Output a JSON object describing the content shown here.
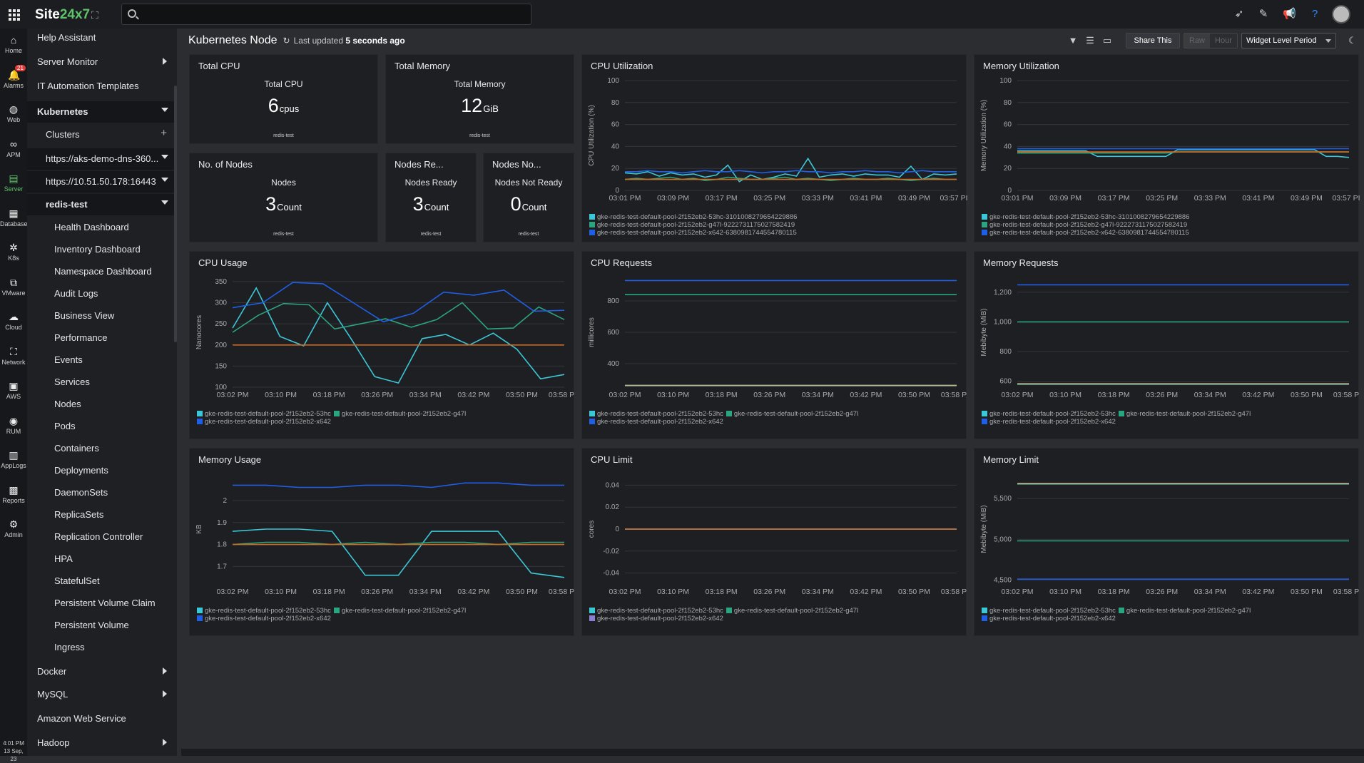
{
  "app": {
    "logo_main": "Site",
    "logo_accent": "24x7",
    "search_value": ""
  },
  "rail": [
    {
      "label": "Home",
      "icon": "home-icon",
      "glyph": "⌂"
    },
    {
      "label": "Alarms",
      "icon": "bell-icon",
      "glyph": "🔔",
      "badge": "21"
    },
    {
      "label": "Web",
      "icon": "globe-icon",
      "glyph": "◍"
    },
    {
      "label": "APM",
      "icon": "binoculars-icon",
      "glyph": "∞"
    },
    {
      "label": "Server",
      "icon": "server-icon",
      "glyph": "▤",
      "active": true
    },
    {
      "label": "Database",
      "icon": "database-icon",
      "glyph": "▦"
    },
    {
      "label": "K8s",
      "icon": "kubernetes-icon",
      "glyph": "✲"
    },
    {
      "label": "VMware",
      "icon": "vmware-icon",
      "glyph": "⧉"
    },
    {
      "label": "Cloud",
      "icon": "cloud-icon",
      "glyph": "☁"
    },
    {
      "label": "Network",
      "icon": "network-icon",
      "glyph": "⛶"
    },
    {
      "label": "AWS",
      "icon": "aws-icon",
      "glyph": "▣"
    },
    {
      "label": "RUM",
      "icon": "rum-icon",
      "glyph": "◉"
    },
    {
      "label": "AppLogs",
      "icon": "applogs-icon",
      "glyph": "▥"
    },
    {
      "label": "Reports",
      "icon": "reports-icon",
      "glyph": "▩"
    },
    {
      "label": "Admin",
      "icon": "gear-icon",
      "glyph": "⚙"
    }
  ],
  "clock": {
    "time": "4:01 PM",
    "date": "13 Sep, 23"
  },
  "sidebar": [
    {
      "label": "Help Assistant",
      "indent": 0,
      "bold": false
    },
    {
      "label": "Server Monitor",
      "indent": 0,
      "caret": "right"
    },
    {
      "label": "IT Automation Templates",
      "indent": 0
    },
    {
      "label": "Kubernetes",
      "indent": 0,
      "bold": true,
      "caret": "down",
      "dark": true
    },
    {
      "label": "Clusters",
      "indent": 1,
      "plus": true
    },
    {
      "label": "https://aks-demo-dns-360...",
      "indent": 1,
      "caret": "down",
      "dark": true
    },
    {
      "label": "https://10.51.50.178:16443",
      "indent": 1,
      "caret": "down",
      "dark": true
    },
    {
      "label": "redis-test",
      "indent": 1,
      "bold": true,
      "caret": "down",
      "dark": true
    },
    {
      "label": "Health Dashboard",
      "indent": 2
    },
    {
      "label": "Inventory Dashboard",
      "indent": 2
    },
    {
      "label": "Namespace Dashboard",
      "indent": 2
    },
    {
      "label": "Audit Logs",
      "indent": 2
    },
    {
      "label": "Business View",
      "indent": 2
    },
    {
      "label": "Performance",
      "indent": 2
    },
    {
      "label": "Events",
      "indent": 2
    },
    {
      "label": "Services",
      "indent": 2
    },
    {
      "label": "Nodes",
      "indent": 2
    },
    {
      "label": "Pods",
      "indent": 2
    },
    {
      "label": "Containers",
      "indent": 2
    },
    {
      "label": "Deployments",
      "indent": 2
    },
    {
      "label": "DaemonSets",
      "indent": 2
    },
    {
      "label": "ReplicaSets",
      "indent": 2
    },
    {
      "label": "Replication Controller",
      "indent": 2
    },
    {
      "label": "HPA",
      "indent": 2
    },
    {
      "label": "StatefulSet",
      "indent": 2
    },
    {
      "label": "Persistent Volume Claim",
      "indent": 2
    },
    {
      "label": "Persistent Volume",
      "indent": 2
    },
    {
      "label": "Ingress",
      "indent": 2
    },
    {
      "label": "Docker",
      "indent": 0,
      "caret": "right"
    },
    {
      "label": "MySQL",
      "indent": 0,
      "caret": "right"
    },
    {
      "label": "Amazon Web Service",
      "indent": 0
    },
    {
      "label": "Hadoop",
      "indent": 0,
      "caret": "right"
    }
  ],
  "header": {
    "title": "Kubernetes Node",
    "last_updated_prefix": "Last updated",
    "last_updated_value": "5 seconds ago",
    "share": "Share This",
    "raw": "Raw",
    "hour": "Hour",
    "period": "Widget Level Period"
  },
  "kpis": {
    "total_cpu": {
      "title": "Total CPU",
      "label": "Total CPU",
      "value": "6",
      "unit": "cpus",
      "cluster": "redis-test"
    },
    "total_memory": {
      "title": "Total Memory",
      "label": "Total Memory",
      "value": "12",
      "unit": "GiB",
      "cluster": "redis-test"
    },
    "nodes": {
      "title": "No. of Nodes",
      "label": "Nodes",
      "value": "3",
      "unit": "Count",
      "cluster": "redis-test"
    },
    "nodes_ready": {
      "title": "Nodes Re...",
      "label": "Nodes Ready",
      "value": "3",
      "unit": "Count",
      "cluster": "redis-test"
    },
    "nodes_not_ready": {
      "title": "Nodes No...",
      "label": "Nodes Not Ready",
      "value": "0",
      "unit": "Count",
      "cluster": "redis-test"
    }
  },
  "colors": {
    "cyan": "#3cc7d6",
    "green": "#2aa57f",
    "blue": "#1f5fe6",
    "orange": "#d2691e",
    "tan": "#c9b27c",
    "grid": "#34363b",
    "text": "#aaaaaa"
  },
  "chart_data": [
    {
      "id": "cpu_util",
      "type": "line",
      "title": "CPU Utilization",
      "ylabel": "CPU Utilization (%)",
      "yticks": [
        "0",
        "20",
        "40",
        "60",
        "80",
        "100"
      ],
      "ylim": [
        0,
        100
      ],
      "xticks": [
        "03:01 PM",
        "03:09 PM",
        "03:17 PM",
        "03:25 PM",
        "03:33 PM",
        "03:41 PM",
        "03:49 PM",
        "03:57 PI"
      ],
      "series": [
        {
          "name": "gke-redis-test-default-pool-2f152eb2-53hc-3101008279654229886",
          "color": "#3cc7d6",
          "values": [
            16,
            15,
            17,
            13,
            16,
            14,
            15,
            12,
            14,
            23,
            8,
            14,
            10,
            12,
            15,
            13,
            29,
            12,
            14,
            15,
            13,
            15,
            14,
            14,
            12,
            22,
            10,
            15,
            14,
            15
          ]
        },
        {
          "name": "gke-redis-test-default-pool-2f152eb2-g47l-9222731175027582419",
          "color": "#2aa57f",
          "values": [
            10,
            11,
            10,
            11,
            12,
            10,
            11,
            9,
            10,
            12,
            11,
            10,
            10,
            11,
            12,
            10,
            11,
            10,
            9,
            10,
            11,
            10,
            10,
            11,
            10,
            9,
            10,
            11,
            10,
            10
          ]
        },
        {
          "name": "gke-redis-test-default-pool-2f152eb2-x642-6380981744554780115",
          "color": "#1f5fe6",
          "values": [
            17,
            17,
            18,
            17,
            17,
            16,
            17,
            18,
            17,
            17,
            18,
            17,
            16,
            17,
            17,
            18,
            17,
            17,
            16,
            17,
            17,
            18,
            17,
            17,
            16,
            17,
            18,
            17,
            17,
            17
          ]
        },
        {
          "name": "threshold",
          "color": "#d2691e",
          "values": [
            10,
            10,
            10,
            10,
            10,
            10,
            10,
            10,
            10,
            10,
            10,
            10,
            10,
            10,
            10,
            10,
            10,
            10,
            10,
            10,
            10,
            10,
            10,
            10,
            10,
            10,
            10,
            10,
            10,
            10
          ],
          "legend": false
        }
      ]
    },
    {
      "id": "mem_util",
      "type": "line",
      "title": "Memory Utilization",
      "ylabel": "Memory Utilization (%)",
      "yticks": [
        "0",
        "20",
        "40",
        "60",
        "80",
        "100"
      ],
      "ylim": [
        0,
        100
      ],
      "xticks": [
        "03:01 PM",
        "03:09 PM",
        "03:17 PM",
        "03:25 PM",
        "03:33 PM",
        "03:41 PM",
        "03:49 PM",
        "03:57 PI"
      ],
      "series": [
        {
          "name": "gke-redis-test-default-pool-2f152eb2-53hc-3101008279654229886",
          "color": "#3cc7d6",
          "values": [
            36,
            36,
            36,
            36,
            36,
            36,
            36,
            31,
            31,
            31,
            31,
            31,
            31,
            31,
            37,
            37,
            37,
            37,
            37,
            37,
            37,
            37,
            37,
            37,
            37,
            37,
            37,
            31,
            31,
            30
          ]
        },
        {
          "name": "gke-redis-test-default-pool-2f152eb2-g47l-9222731175027582419",
          "color": "#2aa57f",
          "values": [
            34,
            34,
            34,
            34,
            34,
            34,
            34,
            34,
            34,
            34,
            34,
            34,
            34,
            34,
            35,
            35,
            35,
            35,
            35,
            35,
            35,
            35,
            35,
            35,
            35,
            35,
            35,
            35,
            35,
            35
          ]
        },
        {
          "name": "gke-redis-test-default-pool-2f152eb2-x642-6380981744554780115",
          "color": "#1f5fe6",
          "values": [
            38,
            38,
            38,
            38,
            38,
            38,
            38,
            38,
            38,
            38,
            38,
            38,
            38,
            38,
            38,
            38,
            38,
            38,
            38,
            38,
            38,
            38,
            38,
            38,
            38,
            38,
            38,
            38,
            38,
            38
          ]
        },
        {
          "name": "threshold",
          "color": "#d2691e",
          "values": [
            35,
            35,
            35,
            35,
            35,
            35,
            35,
            35,
            35,
            35,
            35,
            35,
            35,
            35,
            35,
            35,
            35,
            35,
            35,
            35,
            35,
            35,
            35,
            35,
            35,
            35,
            35,
            35,
            35,
            35
          ],
          "legend": false
        }
      ]
    },
    {
      "id": "cpu_usage",
      "type": "line",
      "title": "CPU Usage",
      "ylabel": "Nanocores",
      "yticks": [
        "100",
        "150",
        "200",
        "250",
        "300",
        "350"
      ],
      "ylim": [
        100,
        360
      ],
      "xticks": [
        "03:02 PM",
        "03:10 PM",
        "03:18 PM",
        "03:26 PM",
        "03:34 PM",
        "03:42 PM",
        "03:50 PM",
        "03:58 P"
      ],
      "series": [
        {
          "name": "gke-redis-test-default-pool-2f152eb2-53hc",
          "color": "#3cc7d6",
          "values": [
            240,
            335,
            220,
            198,
            300,
            215,
            125,
            110,
            215,
            225,
            200,
            228,
            190,
            120,
            130
          ]
        },
        {
          "name": "gke-redis-test-default-pool-2f152eb2-g47l",
          "color": "#2aa57f",
          "values": [
            230,
            270,
            298,
            295,
            238,
            250,
            262,
            242,
            260,
            300,
            238,
            240,
            290,
            260
          ]
        },
        {
          "name": "gke-redis-test-default-pool-2f152eb2-x642",
          "color": "#1f5fe6",
          "values": [
            288,
            300,
            348,
            345,
            300,
            255,
            275,
            325,
            318,
            330,
            280,
            282
          ]
        },
        {
          "name": "threshold",
          "color": "#d2691e",
          "values": [
            200,
            200,
            200,
            200,
            200,
            200,
            200,
            200,
            200,
            200,
            200,
            200
          ],
          "legend": false
        }
      ]
    },
    {
      "id": "cpu_requests",
      "type": "line",
      "title": "CPU Requests",
      "ylabel": "millicores",
      "yticks": [
        "400",
        "600",
        "800"
      ],
      "ylim": [
        250,
        950
      ],
      "xticks": [
        "03:02 PM",
        "03:10 PM",
        "03:18 PM",
        "03:26 PM",
        "03:34 PM",
        "03:42 PM",
        "03:50 PM",
        "03:58 P"
      ],
      "series": [
        {
          "name": "gke-redis-test-default-pool-2f152eb2-53hc",
          "color": "#3cc7d6",
          "values": [
            260,
            260
          ]
        },
        {
          "name": "gke-redis-test-default-pool-2f152eb2-g47l",
          "color": "#2aa57f",
          "values": [
            840,
            840
          ]
        },
        {
          "name": "gke-redis-test-default-pool-2f152eb2-x642",
          "color": "#1f5fe6",
          "values": [
            930,
            930
          ]
        },
        {
          "name": "threshold",
          "color": "#c9b27c",
          "values": [
            262,
            262
          ],
          "legend": false
        }
      ]
    },
    {
      "id": "mem_requests",
      "type": "line",
      "title": "Memory Requests",
      "ylabel": "Mebibyte (MiB)",
      "yticks": [
        "600",
        "800",
        "1,000",
        "1,200"
      ],
      "ylim": [
        560,
        1300
      ],
      "xticks": [
        "03:02 PM",
        "03:10 PM",
        "03:18 PM",
        "03:26 PM",
        "03:34 PM",
        "03:42 PM",
        "03:50 PM",
        "03:58 P"
      ],
      "series": [
        {
          "name": "gke-redis-test-default-pool-2f152eb2-53hc",
          "color": "#3cc7d6",
          "values": [
            580,
            580
          ]
        },
        {
          "name": "gke-redis-test-default-pool-2f152eb2-g47l",
          "color": "#2aa57f",
          "values": [
            1000,
            1000
          ]
        },
        {
          "name": "gke-redis-test-default-pool-2f152eb2-x642",
          "color": "#1f5fe6",
          "values": [
            1250,
            1250
          ]
        },
        {
          "name": "threshold",
          "color": "#c9b27c",
          "values": [
            583,
            583
          ],
          "legend": false
        }
      ]
    },
    {
      "id": "mem_usage",
      "type": "line",
      "title": "Memory Usage",
      "ylabel": "KB",
      "yticks": [
        "1.7",
        "1.8",
        "1.9",
        "2"
      ],
      "ylim": [
        1.62,
        2.12
      ],
      "xticks": [
        "03:02 PM",
        "03:10 PM",
        "03:18 PM",
        "03:26 PM",
        "03:34 PM",
        "03:42 PM",
        "03:50 PM",
        "03:58 P"
      ],
      "series": [
        {
          "name": "gke-redis-test-default-pool-2f152eb2-53hc",
          "color": "#3cc7d6",
          "values": [
            1.86,
            1.87,
            1.87,
            1.86,
            1.66,
            1.66,
            1.86,
            1.86,
            1.86,
            1.67,
            1.65
          ]
        },
        {
          "name": "gke-redis-test-default-pool-2f152eb2-g47l",
          "color": "#2aa57f",
          "values": [
            1.8,
            1.81,
            1.81,
            1.8,
            1.81,
            1.8,
            1.81,
            1.81,
            1.8,
            1.81,
            1.81
          ]
        },
        {
          "name": "gke-redis-test-default-pool-2f152eb2-x642",
          "color": "#1f5fe6",
          "values": [
            2.07,
            2.07,
            2.06,
            2.06,
            2.07,
            2.07,
            2.06,
            2.08,
            2.08,
            2.07,
            2.07
          ]
        },
        {
          "name": "threshold",
          "color": "#d2691e",
          "values": [
            1.8,
            1.8,
            1.8,
            1.8,
            1.8,
            1.8,
            1.8,
            1.8,
            1.8,
            1.8,
            1.8
          ],
          "legend": false
        }
      ]
    },
    {
      "id": "cpu_limit",
      "type": "line",
      "title": "CPU Limit",
      "ylabel": "cores",
      "yticks": [
        "-0.04",
        "-0.02",
        "0",
        "0.02",
        "0.04"
      ],
      "ylim": [
        -0.05,
        0.05
      ],
      "xticks": [
        "03:02 PM",
        "03:10 PM",
        "03:18 PM",
        "03:26 PM",
        "03:34 PM",
        "03:42 PM",
        "03:50 PM",
        "03:58 P"
      ],
      "series": [
        {
          "name": "gke-redis-test-default-pool-2f152eb2-53hc",
          "color": "#3cc7d6",
          "values": [
            0,
            0
          ]
        },
        {
          "name": "gke-redis-test-default-pool-2f152eb2-g47l",
          "color": "#2aa57f",
          "values": [
            0,
            0
          ]
        },
        {
          "name": "gke-redis-test-default-pool-2f152eb2-x642",
          "color": "#8a7fd0",
          "values": [
            0,
            0
          ]
        },
        {
          "name": "threshold",
          "color": "#d2691e",
          "values": [
            0,
            0
          ],
          "legend": false
        }
      ]
    },
    {
      "id": "mem_limit",
      "type": "line",
      "title": "Memory Limit",
      "ylabel": "Mebibyte (MiB)",
      "yticks": [
        "4,500",
        "5,000",
        "5,500"
      ],
      "ylim": [
        4450,
        5800
      ],
      "xticks": [
        "03:02 PM",
        "03:10 PM",
        "03:18 PM",
        "03:26 PM",
        "03:34 PM",
        "03:42 PM",
        "03:50 PM",
        "03:58 P"
      ],
      "series": [
        {
          "name": "gke-redis-test-default-pool-2f152eb2-53hc",
          "color": "#3cc7d6",
          "values": [
            5680,
            5680
          ]
        },
        {
          "name": "gke-redis-test-default-pool-2f152eb2-g47l",
          "color": "#2aa57f",
          "values": [
            4980,
            4980
          ]
        },
        {
          "name": "gke-redis-test-default-pool-2f152eb2-x642",
          "color": "#1f5fe6",
          "values": [
            4510,
            4510
          ]
        },
        {
          "name": "threshold",
          "color": "#c9b27c",
          "values": [
            5685,
            5685
          ],
          "legend": false
        }
      ]
    }
  ]
}
